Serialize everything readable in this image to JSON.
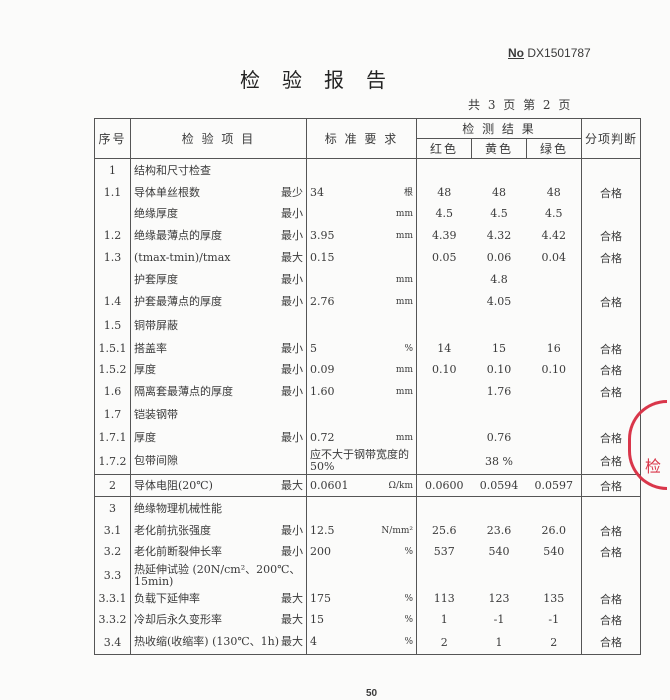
{
  "header": {
    "no_label": "No",
    "doc_no": "DX1501787",
    "title": "检验报告",
    "page_info": "共 3 页 第 2 页"
  },
  "columns": {
    "no": "序号",
    "item": "检 验 项 目",
    "std": "标 准 要 求",
    "results": "检 测 结 果",
    "red": "红色",
    "yellow": "黄色",
    "green": "绿色",
    "judge": "分项判断"
  },
  "rows": [
    {
      "no": "1",
      "item": "结构和尺寸检查",
      "limit": "",
      "std": "",
      "unit": "",
      "r": "",
      "y": "",
      "g": "",
      "judge": ""
    },
    {
      "no": "1.1",
      "item": "导体单丝根数",
      "limit": "最少",
      "std": "34",
      "unit": "根",
      "r": "48",
      "y": "48",
      "g": "48",
      "judge": "合格"
    },
    {
      "no": "",
      "item": "绝缘厚度",
      "limit": "最小",
      "std": "",
      "unit": "mm",
      "r": "4.5",
      "y": "4.5",
      "g": "4.5",
      "judge": ""
    },
    {
      "no": "1.2",
      "item": "绝缘最薄点的厚度",
      "limit": "最小",
      "std": "3.95",
      "unit": "mm",
      "r": "4.39",
      "y": "4.32",
      "g": "4.42",
      "judge": "合格"
    },
    {
      "no": "1.3",
      "item": "(tmax-tmin)/tmax",
      "limit": "最大",
      "std": "0.15",
      "unit": "",
      "r": "0.05",
      "y": "0.06",
      "g": "0.04",
      "judge": "合格"
    },
    {
      "no": "",
      "item": "护套厚度",
      "limit": "最小",
      "std": "",
      "unit": "mm",
      "r": "",
      "y": "4.8",
      "g": "",
      "judge": ""
    },
    {
      "no": "1.4",
      "item": "护套最薄点的厚度",
      "limit": "最小",
      "std": "2.76",
      "unit": "mm",
      "r": "",
      "y": "4.05",
      "g": "",
      "judge": "合格"
    },
    {
      "no": "1.5",
      "item": "铜带屏蔽",
      "limit": "",
      "std": "",
      "unit": "",
      "r": "",
      "y": "",
      "g": "",
      "judge": ""
    },
    {
      "no": "1.5.1",
      "item": "搭盖率",
      "limit": "最小",
      "std": "5",
      "unit": "%",
      "r": "14",
      "y": "15",
      "g": "16",
      "judge": "合格"
    },
    {
      "no": "1.5.2",
      "item": "厚度",
      "limit": "最小",
      "std": "0.09",
      "unit": "mm",
      "r": "0.10",
      "y": "0.10",
      "g": "0.10",
      "judge": "合格"
    },
    {
      "no": "1.6",
      "item": "隔离套最薄点的厚度",
      "limit": "最小",
      "std": "1.60",
      "unit": "mm",
      "r": "",
      "y": "1.76",
      "g": "",
      "judge": "合格"
    },
    {
      "no": "1.7",
      "item": "铠装钢带",
      "limit": "",
      "std": "",
      "unit": "",
      "r": "",
      "y": "",
      "g": "",
      "judge": ""
    },
    {
      "no": "1.7.1",
      "item": "厚度",
      "limit": "最小",
      "std": "0.72",
      "unit": "mm",
      "r": "",
      "y": "0.76",
      "g": "",
      "judge": "合格"
    },
    {
      "no": "1.7.2",
      "item": "包带间隙",
      "limit": "",
      "std": "应不大于钢带宽度的50%",
      "unit": "",
      "r": "",
      "y": "38 %",
      "g": "",
      "judge": "合格"
    },
    {
      "no": "2",
      "item": "导体电阻(20℃)",
      "limit": "最大",
      "std": "0.0601",
      "unit": "Ω/km",
      "r": "0.0600",
      "y": "0.0594",
      "g": "0.0597",
      "judge": "合格"
    },
    {
      "no": "3",
      "item": "绝缘物理机械性能",
      "limit": "",
      "std": "",
      "unit": "",
      "r": "",
      "y": "",
      "g": "",
      "judge": ""
    },
    {
      "no": "3.1",
      "item": "老化前抗张强度",
      "limit": "最小",
      "std": "12.5",
      "unit": "N/mm²",
      "r": "25.6",
      "y": "23.6",
      "g": "26.0",
      "judge": "合格"
    },
    {
      "no": "3.2",
      "item": "老化前断裂伸长率",
      "limit": "最小",
      "std": "200",
      "unit": "%",
      "r": "537",
      "y": "540",
      "g": "540",
      "judge": "合格"
    },
    {
      "no": "3.3",
      "item": "热延伸试验 (20N/cm²、200℃、15min)",
      "limit": "",
      "std": "",
      "unit": "",
      "r": "",
      "y": "",
      "g": "",
      "judge": ""
    },
    {
      "no": "3.3.1",
      "item": "负载下延伸率",
      "limit": "最大",
      "std": "175",
      "unit": "%",
      "r": "113",
      "y": "123",
      "g": "135",
      "judge": "合格"
    },
    {
      "no": "3.3.2",
      "item": "冷却后永久变形率",
      "limit": "最大",
      "std": "15",
      "unit": "%",
      "r": "1",
      "y": "-1",
      "g": "-1",
      "judge": "合格"
    },
    {
      "no": "3.4",
      "item": "热收缩(收缩率) (130℃、1h)",
      "limit": "最大",
      "std": "4",
      "unit": "%",
      "r": "2",
      "y": "1",
      "g": "2",
      "judge": "合格"
    }
  ],
  "stamp_text": "广东产品质量检",
  "page_number": "50"
}
